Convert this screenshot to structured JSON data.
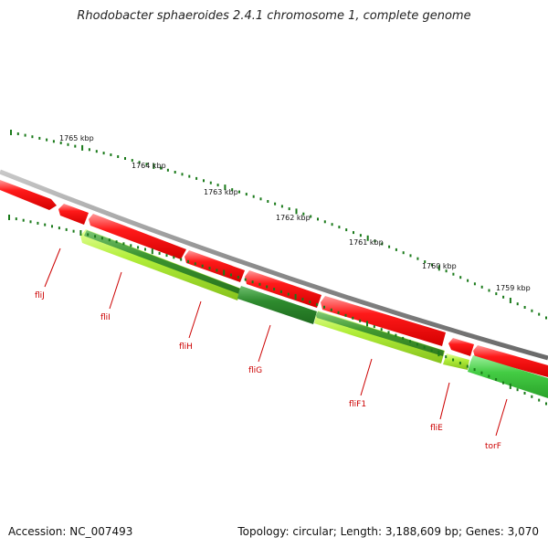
{
  "title": "Rhodobacter sphaeroides 2.4.1 chromosome 1, complete genome",
  "scale_labels": [
    "1765 kbp",
    "1764 kbp",
    "1763 kbp",
    "1762 kbp",
    "1761 kbp",
    "1760 kbp",
    "1759 kbp"
  ],
  "genes": [
    {
      "name": "fliJ"
    },
    {
      "name": "fliI"
    },
    {
      "name": "fliH"
    },
    {
      "name": "fliG"
    },
    {
      "name": "fliF1"
    },
    {
      "name": "fliE"
    },
    {
      "name": "torF"
    }
  ],
  "footer": {
    "accession": "Accession: NC_007493",
    "stats": "Topology: circular; Length: 3,188,609 bp; Genes: 3,070"
  },
  "colors": {
    "backbone": "#8c8c8c",
    "forward_gene": "#ee1111",
    "reverse_gene_dark": "#2e8b2e",
    "reverse_gene_light": "#aee632",
    "reverse_gene_bright": "#44cc44",
    "tick": "#1a7a1a",
    "label": "#cc0000"
  }
}
